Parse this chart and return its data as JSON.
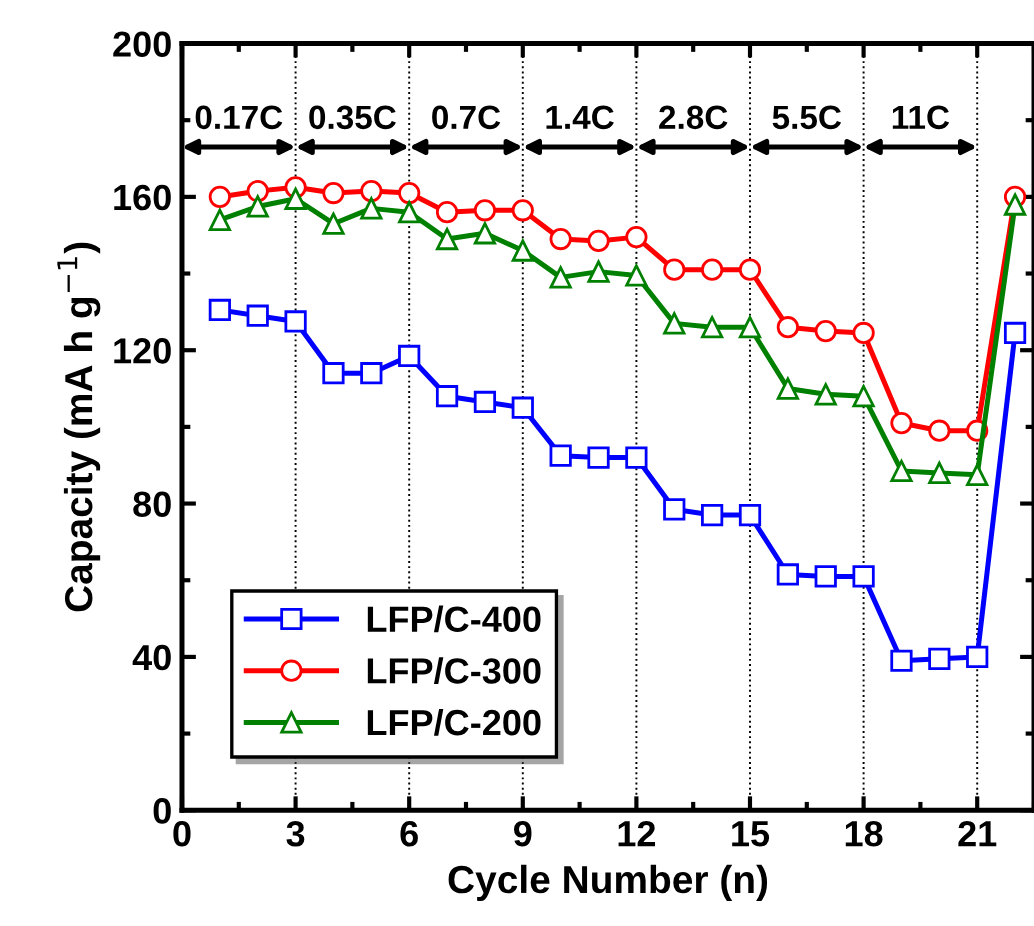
{
  "chart_data": {
    "type": "line",
    "xlabel": "Cycle Number (n)",
    "ylabel": "Capacity (mA h g$^{−1}$)",
    "xlim": [
      0,
      22.5
    ],
    "xticks": [
      0,
      3,
      6,
      9,
      12,
      15,
      18,
      21
    ],
    "ylim": [
      0,
      200
    ],
    "yticks": [
      0,
      40,
      80,
      120,
      160,
      200
    ],
    "x": [
      1,
      2,
      3,
      4,
      5,
      6,
      7,
      8,
      9,
      10,
      11,
      12,
      13,
      14,
      15,
      16,
      17,
      18,
      19,
      20,
      21,
      22
    ],
    "series": [
      {
        "name": "LFP/C-400",
        "color": "#0000ff",
        "marker": "square",
        "values": [
          130.5,
          129,
          127.5,
          114,
          114,
          118.5,
          108,
          106.5,
          105,
          92.5,
          92,
          92,
          78.5,
          77,
          77,
          61.5,
          61,
          61,
          39,
          39.5,
          40,
          124.5
        ]
      },
      {
        "name": "LFP/C-300",
        "color": "#ff0000",
        "marker": "circle",
        "values": [
          160,
          161.5,
          162.5,
          161,
          161.5,
          161,
          156,
          156.5,
          156.5,
          149,
          148.5,
          149.5,
          141,
          141,
          141,
          126,
          125,
          124.5,
          101,
          99,
          99,
          160
        ]
      },
      {
        "name": "LFP/C-200",
        "color": "#008000",
        "marker": "triangle",
        "values": [
          154,
          157.5,
          159.5,
          153,
          157,
          156,
          149,
          150.5,
          146,
          139,
          140.5,
          139.5,
          127,
          126,
          126,
          110,
          108.5,
          108,
          88.5,
          88,
          87.5,
          158
        ]
      }
    ],
    "ref_lines": [
      {
        "axis": "x",
        "value": 3,
        "color": "#000000",
        "line_style": "dotted"
      },
      {
        "axis": "x",
        "value": 6,
        "color": "#000000",
        "line_style": "dotted"
      },
      {
        "axis": "x",
        "value": 9,
        "color": "#000000",
        "line_style": "dotted"
      },
      {
        "axis": "x",
        "value": 12,
        "color": "#000000",
        "line_style": "dotted"
      },
      {
        "axis": "x",
        "value": 15,
        "color": "#000000",
        "line_style": "dotted"
      },
      {
        "axis": "x",
        "value": 18,
        "color": "#000000",
        "line_style": "dotted"
      },
      {
        "axis": "x",
        "value": 21,
        "color": "#000000",
        "line_style": "dotted"
      }
    ],
    "annotations": [
      "0.17C",
      "0.35C",
      "0.7C",
      "1.4C",
      "2.8C",
      "5.5C",
      "11C"
    ],
    "legend": "bottom left",
    "grid": false,
    "line_style": "solid"
  }
}
